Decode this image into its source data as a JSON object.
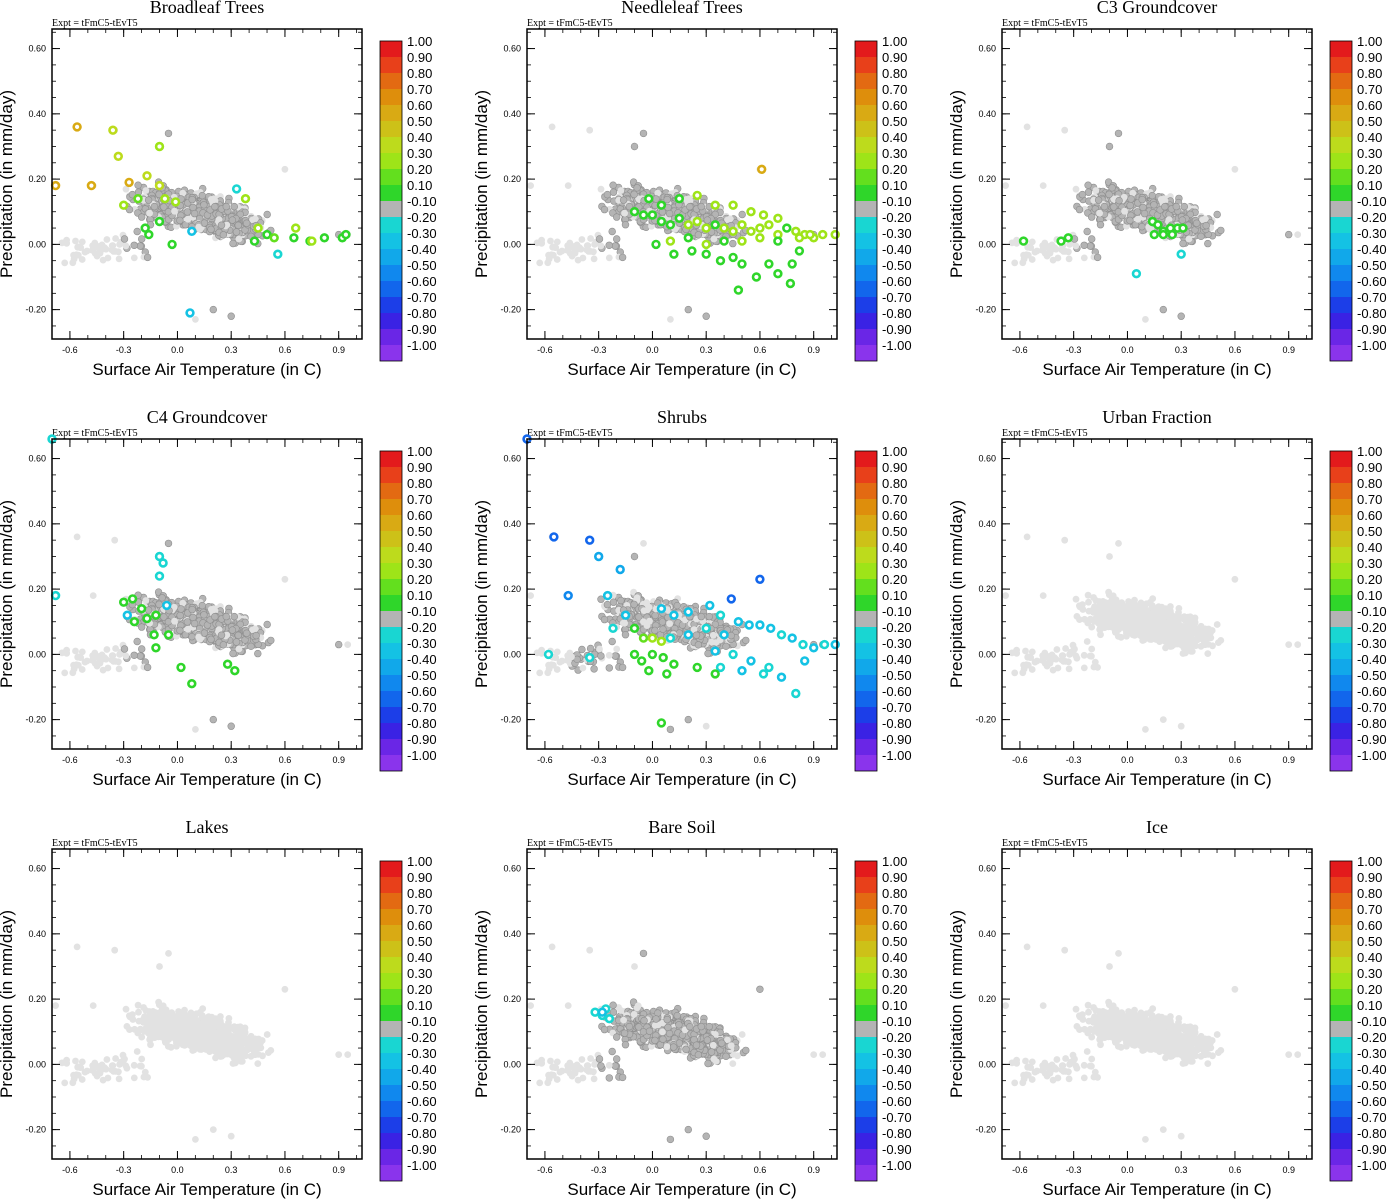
{
  "figure": {
    "expt_label": "Expt = tFmC5-tEvT5",
    "xlabel": "Surface Air Temperature (in C)",
    "ylabel": "Precipitation (in mm/day)",
    "x_ticks": [
      "-0.6",
      "-0.3",
      "0.0",
      "0.3",
      "0.6",
      "0.9"
    ],
    "y_ticks": [
      "-0.20",
      "0.00",
      "0.20",
      "0.40",
      "0.60"
    ],
    "colorbar_labels": [
      "1.00",
      "0.90",
      "0.80",
      "0.70",
      "0.60",
      "0.50",
      "0.40",
      "0.30",
      "0.20",
      "0.10",
      "-0.10",
      "-0.20",
      "-0.30",
      "-0.40",
      "-0.50",
      "-0.60",
      "-0.70",
      "-0.80",
      "-0.90",
      "-1.00"
    ]
  },
  "colors": {
    "colorbar": [
      "#e31a1c",
      "#e8401a",
      "#e36a12",
      "#de8e0c",
      "#d9aa14",
      "#cdc118",
      "#bddb1c",
      "#9ee418",
      "#63df1e",
      "#2fd62a",
      "#b4b4b4",
      "#19d6d2",
      "#14c2e4",
      "#11a8ea",
      "#1088ee",
      "#1266ec",
      "#1c3ee8",
      "#3a22e4",
      "#6a26e6",
      "#8a34ec"
    ],
    "background_point": "#e2e2e2",
    "neutral_point": "#b4b4b4"
  },
  "chart_data": [
    {
      "type": "scatter",
      "title": "Broadleaf Trees",
      "xlim": [
        -0.7,
        1.03
      ],
      "ylim": [
        -0.29,
        0.66
      ],
      "color_scale": [
        -1.0,
        1.0
      ],
      "highlight": "mixed",
      "colored_points": [
        [
          -0.68,
          0.18,
          0.55
        ],
        [
          -0.56,
          0.36,
          0.55
        ],
        [
          -0.48,
          0.18,
          0.55
        ],
        [
          -0.36,
          0.35,
          0.4
        ],
        [
          -0.33,
          0.27,
          0.4
        ],
        [
          -0.27,
          0.19,
          0.55
        ],
        [
          -0.3,
          0.12,
          0.35
        ],
        [
          -0.22,
          0.14,
          0.25
        ],
        [
          -0.17,
          0.21,
          0.4
        ],
        [
          -0.1,
          0.3,
          0.35
        ],
        [
          -0.1,
          0.18,
          0.4
        ],
        [
          -0.07,
          0.14,
          0.35
        ],
        [
          -0.01,
          0.13,
          0.3
        ],
        [
          -0.18,
          0.05,
          0.15
        ],
        [
          -0.1,
          0.07,
          0.15
        ],
        [
          -0.03,
          0.0,
          0.15
        ],
        [
          -0.16,
          0.03,
          0.15
        ],
        [
          0.33,
          0.17,
          -0.25
        ],
        [
          0.38,
          0.14,
          0.35
        ],
        [
          0.45,
          0.05,
          0.35
        ],
        [
          0.5,
          0.03,
          0.15
        ],
        [
          0.43,
          0.01,
          0.15
        ],
        [
          0.54,
          0.02,
          0.2
        ],
        [
          0.66,
          0.05,
          0.35
        ],
        [
          0.65,
          0.02,
          0.15
        ],
        [
          0.74,
          0.01,
          0.15
        ],
        [
          0.82,
          0.02,
          0.15
        ],
        [
          0.92,
          0.02,
          0.15
        ],
        [
          0.94,
          0.03,
          0.15
        ],
        [
          0.75,
          0.01,
          0.3
        ],
        [
          0.56,
          -0.03,
          -0.25
        ],
        [
          0.07,
          -0.21,
          -0.35
        ],
        [
          0.08,
          0.04,
          -0.3
        ]
      ]
    },
    {
      "type": "scatter",
      "title": "Needleleaf Trees",
      "xlim": [
        -0.7,
        1.03
      ],
      "ylim": [
        -0.29,
        0.66
      ],
      "color_scale": [
        -1.0,
        1.0
      ],
      "highlight": "warm",
      "colored_points": [
        [
          0.61,
          0.23,
          0.6
        ],
        [
          -0.1,
          0.1,
          0.15
        ],
        [
          -0.05,
          0.09,
          0.15
        ],
        [
          0.0,
          0.09,
          0.15
        ],
        [
          0.05,
          0.07,
          0.15
        ],
        [
          0.1,
          0.06,
          0.15
        ],
        [
          0.15,
          0.08,
          0.15
        ],
        [
          0.2,
          0.06,
          0.3
        ],
        [
          0.25,
          0.07,
          0.35
        ],
        [
          0.3,
          0.05,
          0.3
        ],
        [
          0.35,
          0.06,
          0.15
        ],
        [
          0.4,
          0.05,
          0.3
        ],
        [
          0.45,
          0.04,
          0.35
        ],
        [
          0.5,
          0.06,
          0.35
        ],
        [
          0.55,
          0.04,
          0.3
        ],
        [
          0.6,
          0.05,
          0.35
        ],
        [
          0.65,
          0.06,
          0.3
        ],
        [
          0.7,
          0.03,
          0.35
        ],
        [
          0.75,
          0.05,
          0.15
        ],
        [
          0.8,
          0.04,
          0.35
        ],
        [
          0.85,
          0.03,
          0.35
        ],
        [
          0.9,
          0.02,
          0.35
        ],
        [
          0.95,
          0.03,
          0.35
        ],
        [
          1.02,
          0.03,
          0.35
        ],
        [
          0.02,
          0.0,
          0.15
        ],
        [
          0.1,
          0.01,
          0.3
        ],
        [
          0.2,
          0.02,
          0.15
        ],
        [
          0.3,
          0.0,
          0.3
        ],
        [
          0.4,
          0.01,
          0.15
        ],
        [
          0.5,
          0.01,
          0.3
        ],
        [
          0.6,
          0.02,
          0.3
        ],
        [
          0.7,
          0.01,
          0.15
        ],
        [
          0.3,
          -0.03,
          0.15
        ],
        [
          0.45,
          -0.04,
          0.15
        ],
        [
          0.5,
          -0.06,
          0.15
        ],
        [
          0.65,
          -0.06,
          0.15
        ],
        [
          0.7,
          -0.09,
          0.15
        ],
        [
          0.77,
          -0.12,
          0.15
        ],
        [
          0.48,
          -0.14,
          0.15
        ],
        [
          0.58,
          -0.1,
          0.15
        ],
        [
          0.38,
          -0.05,
          0.15
        ],
        [
          0.22,
          -0.02,
          0.15
        ],
        [
          0.12,
          -0.03,
          0.15
        ],
        [
          0.82,
          -0.02,
          0.15
        ],
        [
          0.78,
          -0.06,
          0.15
        ],
        [
          0.55,
          0.1,
          0.35
        ],
        [
          0.45,
          0.12,
          0.35
        ],
        [
          0.35,
          0.12,
          0.35
        ],
        [
          0.25,
          0.15,
          0.3
        ],
        [
          0.15,
          0.14,
          0.15
        ],
        [
          0.62,
          0.09,
          0.35
        ],
        [
          0.7,
          0.08,
          0.35
        ],
        [
          0.05,
          0.12,
          0.15
        ],
        [
          -0.02,
          0.14,
          0.15
        ],
        [
          0.82,
          0.02,
          0.35
        ],
        [
          0.88,
          0.03,
          0.3
        ]
      ]
    },
    {
      "type": "scatter",
      "title": "C3 Groundcover",
      "xlim": [
        -0.7,
        1.03
      ],
      "ylim": [
        -0.29,
        0.66
      ],
      "color_scale": [
        -1.0,
        1.0
      ],
      "highlight": "few",
      "colored_points": [
        [
          -0.58,
          0.01,
          0.15
        ],
        [
          -0.37,
          0.01,
          0.15
        ],
        [
          -0.33,
          0.02,
          0.15
        ],
        [
          0.14,
          0.07,
          0.15
        ],
        [
          0.17,
          0.06,
          0.15
        ],
        [
          0.2,
          0.04,
          0.15
        ],
        [
          0.24,
          0.05,
          0.15
        ],
        [
          0.28,
          0.05,
          0.15
        ],
        [
          0.31,
          0.05,
          0.15
        ],
        [
          0.15,
          0.03,
          0.15
        ],
        [
          0.2,
          0.03,
          0.15
        ],
        [
          0.25,
          0.03,
          0.15
        ],
        [
          0.05,
          -0.09,
          -0.25
        ],
        [
          0.3,
          -0.03,
          -0.25
        ]
      ]
    },
    {
      "type": "scatter",
      "title": "C4 Groundcover",
      "xlim": [
        -0.7,
        1.03
      ],
      "ylim": [
        -0.29,
        0.66
      ],
      "color_scale": [
        -1.0,
        1.0
      ],
      "highlight": "mixed-cool",
      "colored_points": [
        [
          -0.7,
          0.66,
          -0.25
        ],
        [
          -0.68,
          0.18,
          -0.25
        ],
        [
          -0.1,
          0.3,
          -0.25
        ],
        [
          -0.08,
          0.28,
          -0.25
        ],
        [
          -0.1,
          0.24,
          -0.25
        ],
        [
          -0.3,
          0.16,
          0.15
        ],
        [
          -0.25,
          0.17,
          0.15
        ],
        [
          -0.2,
          0.14,
          0.15
        ],
        [
          -0.17,
          0.11,
          0.15
        ],
        [
          -0.12,
          0.12,
          0.15
        ],
        [
          -0.24,
          0.1,
          0.15
        ],
        [
          -0.13,
          0.06,
          0.15
        ],
        [
          -0.05,
          0.06,
          0.15
        ],
        [
          -0.12,
          0.02,
          0.15
        ],
        [
          0.02,
          -0.04,
          0.15
        ],
        [
          0.08,
          -0.09,
          0.15
        ],
        [
          0.28,
          -0.03,
          0.15
        ],
        [
          0.32,
          -0.05,
          0.15
        ],
        [
          -0.06,
          0.15,
          -0.3
        ],
        [
          -0.28,
          0.12,
          -0.35
        ]
      ]
    },
    {
      "type": "scatter",
      "title": "Shrubs",
      "xlim": [
        -0.7,
        1.03
      ],
      "ylim": [
        -0.29,
        0.66
      ],
      "color_scale": [
        -1.0,
        1.0
      ],
      "highlight": "cool",
      "colored_points": [
        [
          -0.7,
          0.66,
          -0.55
        ],
        [
          -0.55,
          0.36,
          -0.55
        ],
        [
          -0.35,
          0.35,
          -0.55
        ],
        [
          -0.47,
          0.18,
          -0.5
        ],
        [
          -0.3,
          0.3,
          -0.4
        ],
        [
          -0.25,
          0.18,
          -0.35
        ],
        [
          -0.18,
          0.26,
          -0.4
        ],
        [
          -0.15,
          0.12,
          -0.3
        ],
        [
          -0.22,
          0.08,
          -0.25
        ],
        [
          0.05,
          0.14,
          -0.35
        ],
        [
          0.12,
          0.12,
          -0.3
        ],
        [
          0.2,
          0.13,
          -0.35
        ],
        [
          0.32,
          0.15,
          -0.3
        ],
        [
          0.38,
          0.12,
          -0.25
        ],
        [
          0.44,
          0.17,
          -0.55
        ],
        [
          0.6,
          0.23,
          -0.6
        ],
        [
          0.48,
          0.1,
          -0.35
        ],
        [
          0.54,
          0.09,
          -0.3
        ],
        [
          0.6,
          0.09,
          -0.35
        ],
        [
          0.66,
          0.08,
          -0.3
        ],
        [
          0.72,
          0.06,
          -0.25
        ],
        [
          0.78,
          0.05,
          -0.3
        ],
        [
          0.84,
          0.03,
          -0.25
        ],
        [
          0.9,
          0.02,
          -0.3
        ],
        [
          0.96,
          0.03,
          -0.25
        ],
        [
          1.02,
          0.03,
          -0.3
        ],
        [
          0.4,
          0.06,
          -0.3
        ],
        [
          0.3,
          0.08,
          -0.25
        ],
        [
          0.2,
          0.06,
          -0.3
        ],
        [
          0.1,
          0.05,
          -0.25
        ],
        [
          0.35,
          0.01,
          -0.3
        ],
        [
          0.45,
          0.0,
          -0.25
        ],
        [
          0.55,
          -0.02,
          -0.3
        ],
        [
          0.65,
          -0.04,
          -0.25
        ],
        [
          0.72,
          -0.07,
          -0.3
        ],
        [
          0.8,
          -0.12,
          -0.25
        ],
        [
          0.85,
          -0.02,
          -0.3
        ],
        [
          0.62,
          -0.06,
          -0.25
        ],
        [
          0.5,
          -0.05,
          -0.3
        ],
        [
          0.38,
          -0.04,
          -0.25
        ],
        [
          -0.1,
          0.08,
          0.15
        ],
        [
          -0.05,
          0.05,
          0.25
        ],
        [
          0.0,
          0.05,
          0.3
        ],
        [
          0.05,
          0.04,
          0.3
        ],
        [
          0.0,
          0.0,
          0.15
        ],
        [
          0.06,
          -0.01,
          0.15
        ],
        [
          0.12,
          -0.03,
          0.15
        ],
        [
          -0.06,
          -0.02,
          0.15
        ],
        [
          -0.1,
          0.0,
          0.15
        ],
        [
          -0.02,
          -0.05,
          0.15
        ],
        [
          0.08,
          -0.06,
          0.15
        ],
        [
          0.25,
          -0.04,
          0.15
        ],
        [
          0.35,
          -0.06,
          0.15
        ],
        [
          0.05,
          -0.21,
          0.15
        ],
        [
          -0.58,
          0.0,
          -0.25
        ],
        [
          -0.35,
          -0.01,
          -0.25
        ]
      ]
    },
    {
      "type": "scatter",
      "title": "Urban Fraction",
      "xlim": [
        -0.7,
        1.03
      ],
      "ylim": [
        -0.29,
        0.66
      ],
      "color_scale": [
        -1.0,
        1.0
      ],
      "highlight": "none",
      "colored_points": []
    },
    {
      "type": "scatter",
      "title": "Lakes",
      "xlim": [
        -0.7,
        1.03
      ],
      "ylim": [
        -0.29,
        0.66
      ],
      "color_scale": [
        -1.0,
        1.0
      ],
      "highlight": "none",
      "colored_points": []
    },
    {
      "type": "scatter",
      "title": "Bare Soil",
      "xlim": [
        -0.7,
        1.03
      ],
      "ylim": [
        -0.29,
        0.66
      ],
      "color_scale": [
        -1.0,
        1.0
      ],
      "highlight": "neutral",
      "colored_points": [
        [
          -0.32,
          0.16,
          -0.25
        ],
        [
          -0.28,
          0.15,
          -0.25
        ],
        [
          -0.26,
          0.17,
          -0.25
        ],
        [
          -0.24,
          0.14,
          -0.25
        ],
        [
          -0.28,
          0.16,
          -0.3
        ]
      ]
    },
    {
      "type": "scatter",
      "title": "Ice",
      "xlim": [
        -0.7,
        1.03
      ],
      "ylim": [
        -0.29,
        0.66
      ],
      "color_scale": [
        -1.0,
        1.0
      ],
      "highlight": "none",
      "colored_points": []
    }
  ]
}
